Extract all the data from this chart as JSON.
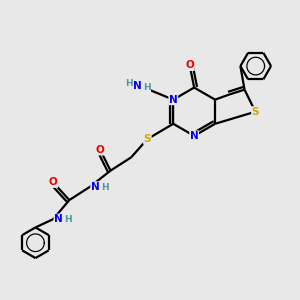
{
  "bg_color": "#e8e8e8",
  "atom_colors": {
    "C": "#000000",
    "N": "#0000ee",
    "O": "#ee0000",
    "S": "#ccaa00",
    "H": "#4a9a9a"
  },
  "bond_color": "#000000",
  "lw": 1.6,
  "fs": 7.5
}
